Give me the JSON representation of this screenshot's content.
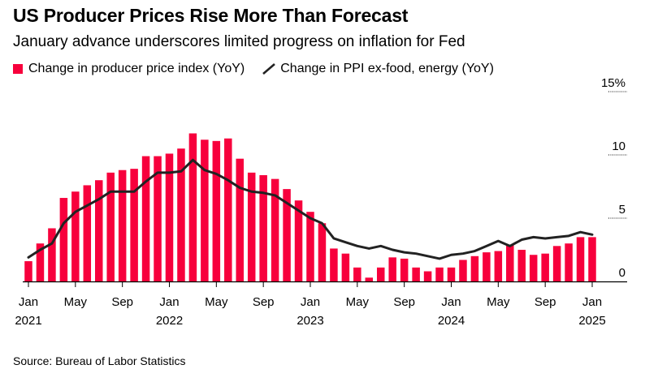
{
  "header": {
    "title": "US Producer Prices Rise More Than Forecast",
    "subtitle": "January advance underscores limited progress on inflation for Fed"
  },
  "legend": {
    "bar_label": "Change in producer price index (YoY)",
    "line_label": "Change in PPI ex-food, energy (YoY)"
  },
  "footer": {
    "source": "Source: Bureau of Labor Statistics"
  },
  "colors": {
    "bar": "#f7003c",
    "line": "#222222",
    "axis": "#000000"
  },
  "chart_data": {
    "type": "bar",
    "title": "US Producer Prices Rise More Than Forecast",
    "subtitle": "January advance underscores limited progress on inflation for Fed",
    "x": [
      "2021-01",
      "2021-02",
      "2021-03",
      "2021-04",
      "2021-05",
      "2021-06",
      "2021-07",
      "2021-08",
      "2021-09",
      "2021-10",
      "2021-11",
      "2021-12",
      "2022-01",
      "2022-02",
      "2022-03",
      "2022-04",
      "2022-05",
      "2022-06",
      "2022-07",
      "2022-08",
      "2022-09",
      "2022-10",
      "2022-11",
      "2022-12",
      "2023-01",
      "2023-02",
      "2023-03",
      "2023-04",
      "2023-05",
      "2023-06",
      "2023-07",
      "2023-08",
      "2023-09",
      "2023-10",
      "2023-11",
      "2023-12",
      "2024-01",
      "2024-02",
      "2024-03",
      "2024-04",
      "2024-05",
      "2024-06",
      "2024-07",
      "2024-08",
      "2024-09",
      "2024-10",
      "2024-11",
      "2024-12",
      "2025-01"
    ],
    "series": [
      {
        "name": "Change in producer price index (YoY)",
        "type": "bar",
        "values": [
          1.6,
          3.0,
          4.2,
          6.6,
          7.1,
          7.6,
          8.0,
          8.6,
          8.8,
          8.9,
          9.9,
          9.9,
          10.1,
          10.5,
          11.7,
          11.2,
          11.1,
          11.3,
          9.7,
          8.6,
          8.4,
          8.1,
          7.3,
          6.4,
          5.5,
          4.6,
          2.6,
          2.2,
          1.1,
          0.3,
          1.1,
          1.9,
          1.8,
          1.1,
          0.8,
          1.1,
          1.1,
          1.7,
          2.0,
          2.3,
          2.4,
          2.9,
          2.5,
          2.1,
          2.2,
          2.8,
          3.0,
          3.5,
          3.5
        ]
      },
      {
        "name": "Change in PPI ex-food, energy (YoY)",
        "type": "line",
        "values": [
          1.9,
          2.5,
          3.0,
          4.6,
          5.5,
          6.0,
          6.5,
          7.1,
          7.1,
          7.1,
          7.9,
          8.6,
          8.6,
          8.7,
          9.6,
          8.8,
          8.5,
          8.0,
          7.4,
          7.1,
          7.0,
          6.8,
          6.2,
          5.6,
          5.0,
          4.6,
          3.4,
          3.1,
          2.8,
          2.6,
          2.8,
          2.5,
          2.3,
          2.2,
          2.0,
          1.8,
          2.1,
          2.2,
          2.4,
          2.8,
          3.2,
          2.8,
          3.3,
          3.5,
          3.4,
          3.5,
          3.6,
          3.9,
          3.7
        ]
      }
    ],
    "ylim": [
      0,
      15
    ],
    "y_ticks": [
      0,
      5,
      10,
      15
    ],
    "y_tick_labels": [
      "0",
      "5",
      "10",
      "15%"
    ],
    "x_ticks": [
      {
        "index": 0,
        "label": "Jan",
        "year": "2021"
      },
      {
        "index": 4,
        "label": "May",
        "year": ""
      },
      {
        "index": 8,
        "label": "Sep",
        "year": ""
      },
      {
        "index": 12,
        "label": "Jan",
        "year": "2022"
      },
      {
        "index": 16,
        "label": "May",
        "year": ""
      },
      {
        "index": 20,
        "label": "Sep",
        "year": ""
      },
      {
        "index": 24,
        "label": "Jan",
        "year": "2023"
      },
      {
        "index": 28,
        "label": "May",
        "year": ""
      },
      {
        "index": 32,
        "label": "Sep",
        "year": ""
      },
      {
        "index": 36,
        "label": "Jan",
        "year": "2024"
      },
      {
        "index": 40,
        "label": "May",
        "year": ""
      },
      {
        "index": 44,
        "label": "Sep",
        "year": ""
      },
      {
        "index": 48,
        "label": "Jan",
        "year": "2025"
      }
    ],
    "y_axis_position": "right",
    "grid": false,
    "legend_position": "top-left"
  }
}
